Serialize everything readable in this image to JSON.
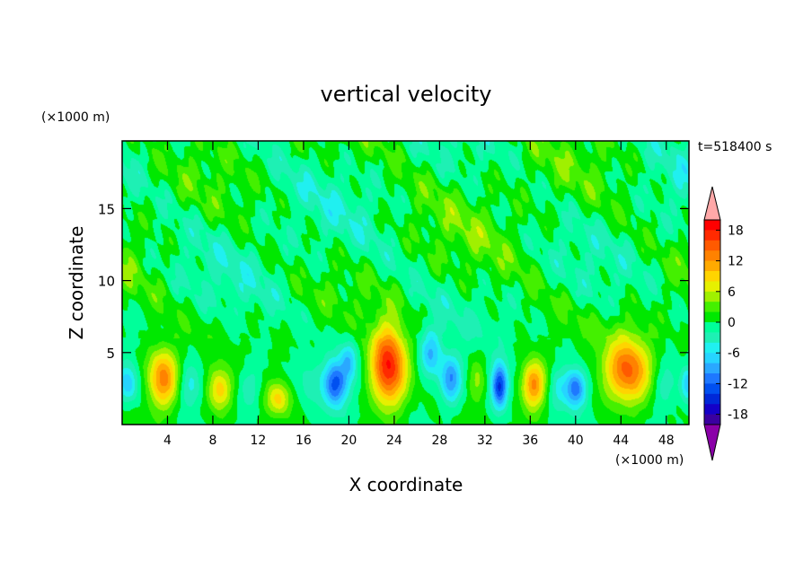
{
  "chart_data": {
    "type": "heatmap",
    "title": "vertical velocity",
    "xlabel": "X coordinate",
    "ylabel": "Z coordinate",
    "x_unit": "(×1000 m)",
    "y_unit": "(×1000 m)",
    "time_label": "t=518400 s",
    "xlim": [
      0,
      50
    ],
    "ylim": [
      0,
      19.7
    ],
    "x_ticks": [
      4,
      8,
      12,
      16,
      20,
      24,
      28,
      32,
      36,
      40,
      44,
      48
    ],
    "y_ticks": [
      5,
      10,
      15
    ],
    "colorbar": {
      "tick_labels": [
        18,
        12,
        6,
        0,
        -6,
        -12,
        -18
      ],
      "levels": [
        -20,
        -18,
        -16,
        -14,
        -12,
        -10,
        -8,
        -6,
        -4,
        -2,
        0,
        2,
        4,
        6,
        8,
        10,
        12,
        14,
        16,
        18,
        20
      ],
      "colors": [
        "#8a00a8",
        "#3a00a0",
        "#1400c8",
        "#0028d8",
        "#0050f0",
        "#1e78ff",
        "#2aa8ff",
        "#26d4ff",
        "#20f0f0",
        "#1ef0b4",
        "#00ff9a",
        "#00e800",
        "#44f000",
        "#a0f000",
        "#e6f000",
        "#ffd400",
        "#ffaa00",
        "#ff8200",
        "#ff5a00",
        "#ff2a00",
        "#ff0000",
        "#ffa8a8"
      ]
    },
    "features": [
      {
        "x": 0.5,
        "z": 2.8,
        "w": -7,
        "sx": 0.8,
        "sz": 1.2
      },
      {
        "x": 3.6,
        "z": 3.2,
        "w": 13,
        "sx": 1.3,
        "sz": 2.0
      },
      {
        "x": 6.0,
        "z": 2.6,
        "w": -5,
        "sx": 1.0,
        "sz": 1.5
      },
      {
        "x": 8.6,
        "z": 2.4,
        "w": 9,
        "sx": 1.0,
        "sz": 1.4
      },
      {
        "x": 11.2,
        "z": 2.6,
        "w": -4,
        "sx": 1.0,
        "sz": 1.5
      },
      {
        "x": 13.8,
        "z": 1.8,
        "w": 8,
        "sx": 1.0,
        "sz": 1.1
      },
      {
        "x": 16.5,
        "z": 3.0,
        "w": -3,
        "sx": 1.0,
        "sz": 1.5
      },
      {
        "x": 18.8,
        "z": 2.8,
        "w": -13,
        "sx": 1.0,
        "sz": 1.5
      },
      {
        "x": 20.0,
        "z": 4.5,
        "w": -7,
        "sx": 0.7,
        "sz": 1.3
      },
      {
        "x": 23.5,
        "z": 4.0,
        "w": 18,
        "sx": 1.5,
        "sz": 2.7
      },
      {
        "x": 27.2,
        "z": 5.0,
        "w": -8,
        "sx": 0.9,
        "sz": 1.5
      },
      {
        "x": 29.0,
        "z": 3.2,
        "w": -10,
        "sx": 0.9,
        "sz": 1.6
      },
      {
        "x": 31.3,
        "z": 3.0,
        "w": 4,
        "sx": 0.7,
        "sz": 1.5
      },
      {
        "x": 33.3,
        "z": 2.6,
        "w": -15,
        "sx": 0.7,
        "sz": 1.5
      },
      {
        "x": 36.3,
        "z": 2.8,
        "w": 13,
        "sx": 1.0,
        "sz": 1.6
      },
      {
        "x": 38.5,
        "z": 2.6,
        "w": -4,
        "sx": 0.8,
        "sz": 1.4
      },
      {
        "x": 40.0,
        "z": 2.5,
        "w": -12,
        "sx": 0.9,
        "sz": 1.3
      },
      {
        "x": 44.6,
        "z": 3.8,
        "w": 14,
        "sx": 1.9,
        "sz": 2.2
      },
      {
        "x": 47.8,
        "z": 2.6,
        "w": -4,
        "sx": 1.0,
        "sz": 1.5
      },
      {
        "x": 49.9,
        "z": 2.8,
        "w": -7,
        "sx": 0.6,
        "sz": 1.1
      }
    ]
  }
}
